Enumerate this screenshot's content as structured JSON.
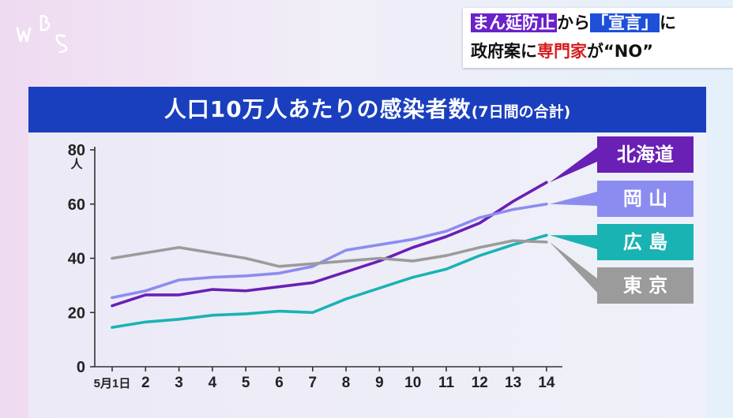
{
  "logo": {
    "text": "WBS"
  },
  "headline": {
    "line1": [
      {
        "text": "まん延防止",
        "style": "purple"
      },
      {
        "text": "から",
        "style": "plain"
      },
      {
        "text": "「宣言」",
        "style": "blue"
      },
      {
        "text": "に",
        "style": "plain"
      }
    ],
    "line2": [
      {
        "text": "政府案に",
        "style": "plain"
      },
      {
        "text": "専門家",
        "style": "red"
      },
      {
        "text": "が“NO”",
        "style": "plain"
      }
    ]
  },
  "chart_data": {
    "type": "line",
    "title": "人口10万人あたりの感染者数",
    "subtitle": "(7日間の合計)",
    "ylabel": "人",
    "ylim": [
      0,
      80
    ],
    "yticks": [
      "0",
      "20",
      "40",
      "60",
      "80"
    ],
    "categories": [
      "5月1日",
      "2",
      "3",
      "4",
      "5",
      "6",
      "7",
      "8",
      "9",
      "10",
      "11",
      "12",
      "13",
      "14"
    ],
    "series": [
      {
        "name": "北海道",
        "color": "#6a1fb5",
        "values": [
          22.5,
          26.5,
          26.5,
          28.5,
          28,
          29.5,
          31,
          35,
          39,
          44,
          48,
          53,
          61,
          68
        ]
      },
      {
        "name": "岡 山",
        "color": "#8c8cf0",
        "values": [
          25.5,
          28,
          32,
          33,
          33.5,
          34.5,
          37,
          43,
          45,
          47,
          50,
          55,
          58,
          60
        ]
      },
      {
        "name": "広 島",
        "color": "#19b3b3",
        "values": [
          14.5,
          16.5,
          17.5,
          19,
          19.5,
          20.5,
          20,
          25,
          29,
          33,
          36,
          41,
          45,
          48.5
        ]
      },
      {
        "name": "東 京",
        "color": "#9b9b9b",
        "values": [
          40,
          42,
          44,
          42,
          40,
          37,
          38,
          39,
          40,
          39,
          41,
          44,
          46.5,
          46
        ]
      }
    ]
  }
}
